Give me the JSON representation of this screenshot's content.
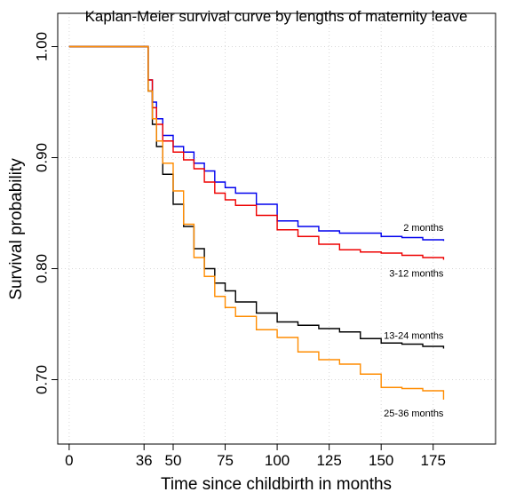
{
  "chart_data": {
    "type": "step",
    "title": "Kaplan-Meier survival curve by lengths of maternity leave",
    "x_label": "Time since childbirth in months",
    "y_label": "Survival probability",
    "x": [
      0,
      36,
      38,
      40,
      42,
      45,
      50,
      55,
      60,
      65,
      70,
      75,
      80,
      90,
      100,
      110,
      120,
      130,
      140,
      150,
      160,
      170,
      180
    ],
    "series": [
      {
        "name": "2 months",
        "color": "#0000ee",
        "values": [
          1,
          1,
          0.97,
          0.95,
          0.935,
          0.92,
          0.91,
          0.905,
          0.895,
          0.888,
          0.878,
          0.873,
          0.868,
          0.858,
          0.843,
          0.838,
          0.834,
          0.832,
          0.832,
          0.829,
          0.828,
          0.826,
          0.825
        ]
      },
      {
        "name": "3-12 months",
        "color": "#ee0000",
        "values": [
          1,
          1,
          0.97,
          0.945,
          0.93,
          0.915,
          0.905,
          0.898,
          0.89,
          0.878,
          0.868,
          0.862,
          0.857,
          0.848,
          0.835,
          0.829,
          0.822,
          0.817,
          0.815,
          0.814,
          0.812,
          0.81,
          0.808
        ]
      },
      {
        "name": "13-24 months",
        "color": "#000000",
        "values": [
          1,
          1,
          0.96,
          0.93,
          0.91,
          0.885,
          0.858,
          0.838,
          0.818,
          0.8,
          0.787,
          0.78,
          0.77,
          0.76,
          0.752,
          0.749,
          0.746,
          0.743,
          0.737,
          0.733,
          0.732,
          0.73,
          0.728
        ]
      },
      {
        "name": "25-36 months",
        "color": "#ff8c00",
        "values": [
          1,
          1,
          0.96,
          0.935,
          0.915,
          0.895,
          0.87,
          0.84,
          0.81,
          0.793,
          0.775,
          0.765,
          0.757,
          0.745,
          0.738,
          0.725,
          0.718,
          0.714,
          0.705,
          0.693,
          0.692,
          0.69,
          0.682
        ]
      }
    ],
    "xlim": [
      -5.5,
      205
    ],
    "ylim": [
      0.642,
      1.03
    ],
    "xticks": [
      0,
      36,
      50,
      75,
      100,
      125,
      150,
      175
    ],
    "yticks": [
      {
        "value": 1,
        "label": "1.00"
      },
      {
        "value": 0.9,
        "label": "0.90"
      },
      {
        "value": 0.8,
        "label": "0.80"
      },
      {
        "value": 0.7,
        "label": "0.70"
      }
    ],
    "grid": true
  }
}
